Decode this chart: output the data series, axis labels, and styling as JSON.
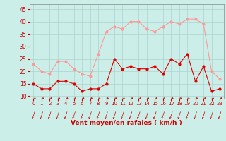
{
  "hours": [
    0,
    1,
    2,
    3,
    4,
    5,
    6,
    7,
    8,
    9,
    10,
    11,
    12,
    13,
    14,
    15,
    16,
    17,
    18,
    19,
    20,
    21,
    22,
    23
  ],
  "wind_avg": [
    15,
    13,
    13,
    16,
    16,
    15,
    12,
    13,
    13,
    15,
    25,
    21,
    22,
    21,
    21,
    22,
    19,
    25,
    23,
    27,
    16,
    22,
    12,
    13
  ],
  "wind_gust": [
    23,
    20,
    19,
    24,
    24,
    21,
    19,
    18,
    27,
    36,
    38,
    37,
    40,
    40,
    37,
    36,
    38,
    40,
    39,
    41,
    41,
    39,
    20,
    17
  ],
  "xlabel": "Vent moyen/en rafales ( km/h )",
  "ylim": [
    9,
    47
  ],
  "yticks": [
    10,
    15,
    20,
    25,
    30,
    35,
    40,
    45
  ],
  "xlim": [
    -0.5,
    23.5
  ],
  "bg_color": "#cceee8",
  "grid_color": "#aad4ce",
  "line_color_avg": "#dd0000",
  "line_color_gust": "#ff9999",
  "tick_label_color": "#cc0000",
  "xlabel_color": "#cc0000",
  "spine_color": "#888888",
  "arrow_color": "#cc0000"
}
